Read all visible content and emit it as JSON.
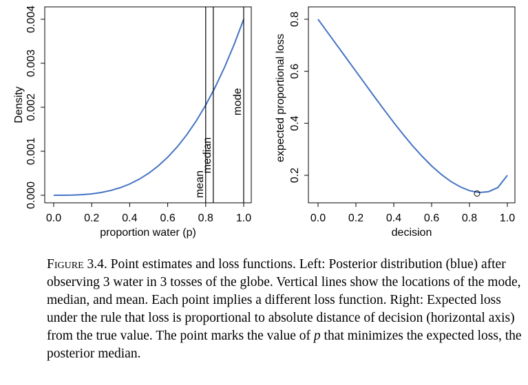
{
  "chart_data": [
    {
      "type": "line",
      "xlabel": "proportion water (p)",
      "ylabel": "Density",
      "xlim": [
        0,
        1
      ],
      "ylim": [
        0,
        0.004
      ],
      "xticks": [
        "0.0",
        "0.2",
        "0.4",
        "0.6",
        "0.8",
        "1.0"
      ],
      "yticks": [
        "0.000",
        "0.001",
        "0.002",
        "0.003",
        "0.004"
      ],
      "series": [
        {
          "color": "#4472C4",
          "x": [
            0.0,
            0.05,
            0.1,
            0.15,
            0.2,
            0.25,
            0.3,
            0.35,
            0.4,
            0.45,
            0.5,
            0.55,
            0.6,
            0.65,
            0.7,
            0.75,
            0.8,
            0.85,
            0.9,
            0.95,
            1.0
          ],
          "y": [
            0.0,
            5e-07,
            4e-06,
            1.35e-05,
            3.2e-05,
            6.25e-05,
            0.000108,
            0.0001715,
            0.000256,
            0.0003645,
            0.0005,
            0.0006655,
            0.000864,
            0.0010985,
            0.001372,
            0.0016875,
            0.002048,
            0.0024565,
            0.002916,
            0.0034295,
            0.004
          ]
        }
      ],
      "vlines": [
        {
          "x": 0.8,
          "label": "mean"
        },
        {
          "x": 0.84,
          "label": "median"
        },
        {
          "x": 1.0,
          "label": "mode"
        }
      ]
    },
    {
      "type": "line",
      "xlabel": "decision",
      "ylabel": "expected proportional loss",
      "xlim": [
        0,
        1
      ],
      "ylim": [
        0.1,
        0.8
      ],
      "xticks": [
        "0.0",
        "0.2",
        "0.4",
        "0.6",
        "0.8",
        "1.0"
      ],
      "yticks": [
        "0.2",
        "0.4",
        "0.6",
        "0.8"
      ],
      "series": [
        {
          "color": "#4472C4",
          "x": [
            0.0,
            0.05,
            0.1,
            0.15,
            0.2,
            0.25,
            0.3,
            0.35,
            0.4,
            0.45,
            0.5,
            0.55,
            0.6,
            0.65,
            0.7,
            0.75,
            0.8,
            0.85,
            0.9,
            0.95,
            1.0
          ],
          "y": [
            0.8,
            0.75,
            0.7,
            0.65,
            0.6,
            0.55,
            0.5,
            0.451,
            0.403,
            0.357,
            0.313,
            0.273,
            0.236,
            0.204,
            0.177,
            0.156,
            0.141,
            0.134,
            0.137,
            0.153,
            0.2
          ]
        }
      ],
      "marker": {
        "x": 0.84,
        "y": 0.13
      }
    }
  ],
  "caption": {
    "lead": "Figure 3.4.",
    "text": "Point estimates and loss functions. Left: Posterior distribution (blue) after observing 3 water in 3 tosses of the globe. Vertical lines show the locations of the mode, median, and mean. Each point implies a different loss function. Right: Expected loss under the rule that loss is proportional to absolute distance of decision (horizontal axis) from the true value. The point marks the value of ",
    "var": "p",
    "tail": " that minimizes the expected loss, the posterior median."
  },
  "colors": {
    "line": "#4472C4"
  }
}
